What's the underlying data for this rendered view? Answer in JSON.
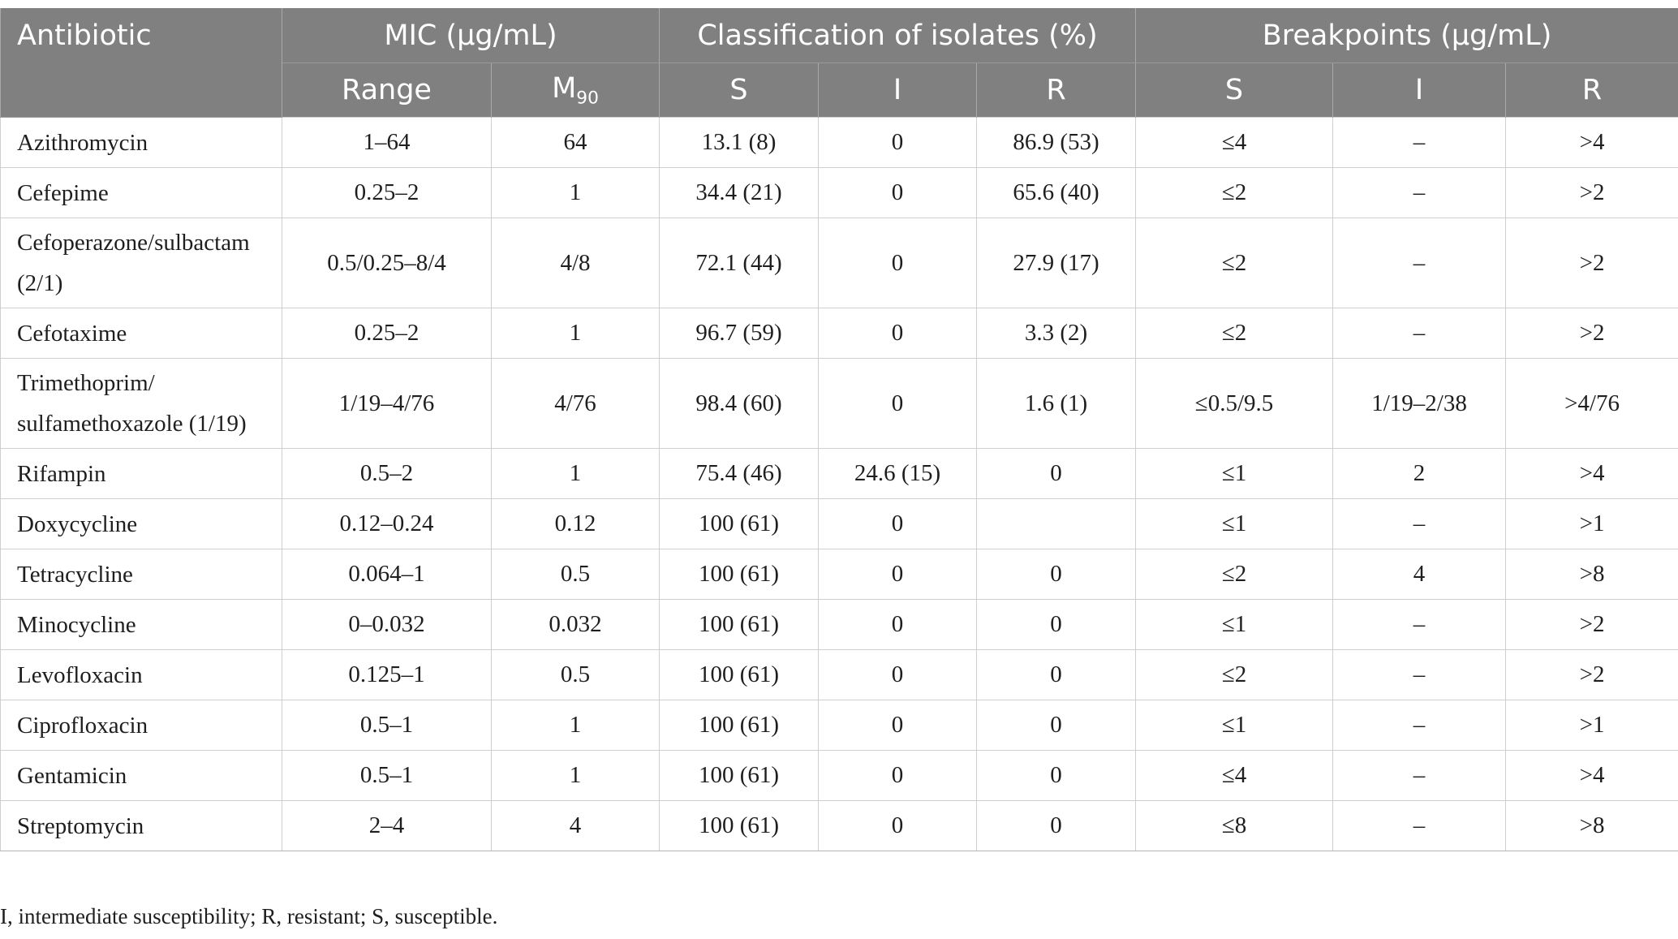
{
  "header": {
    "antibiotic": "Antibiotic",
    "mic": "MIC (μg/mL)",
    "classification": "Classification of isolates (%)",
    "breakpoints": "Breakpoints (μg/mL)",
    "range": "Range",
    "m90_base": "M",
    "m90_sub": "90",
    "s": "S",
    "i": "I",
    "r": "R"
  },
  "rows": [
    {
      "name": "Azithromycin",
      "range": "1–64",
      "m90": "64",
      "s": "13.1 (8)",
      "i": "0",
      "r": "86.9 (53)",
      "bp_s": "≤4",
      "bp_i": "–",
      "bp_r": ">4"
    },
    {
      "name": "Cefepime",
      "range": "0.25–2",
      "m90": "1",
      "s": "34.4 (21)",
      "i": "0",
      "r": "65.6 (40)",
      "bp_s": "≤2",
      "bp_i": "–",
      "bp_r": ">2"
    },
    {
      "name": "Cefoperazone/sulbactam (2/1)",
      "range": "0.5/0.25–8/4",
      "m90": "4/8",
      "s": "72.1 (44)",
      "i": "0",
      "r": "27.9 (17)",
      "bp_s": "≤2",
      "bp_i": "–",
      "bp_r": ">2"
    },
    {
      "name": "Cefotaxime",
      "range": "0.25–2",
      "m90": "1",
      "s": "96.7 (59)",
      "i": "0",
      "r": "3.3 (2)",
      "bp_s": "≤2",
      "bp_i": "–",
      "bp_r": ">2"
    },
    {
      "name": "Trimethoprim/ sulfamethoxazole (1/19)",
      "range": "1/19–4/76",
      "m90": "4/76",
      "s": "98.4 (60)",
      "i": "0",
      "r": "1.6 (1)",
      "bp_s": "≤0.5/9.5",
      "bp_i": "1/19–2/38",
      "bp_r": ">4/76"
    },
    {
      "name": "Rifampin",
      "range": "0.5–2",
      "m90": "1",
      "s": "75.4 (46)",
      "i": "24.6 (15)",
      "r": "0",
      "bp_s": "≤1",
      "bp_i": "2",
      "bp_r": ">4"
    },
    {
      "name": "Doxycycline",
      "range": "0.12–0.24",
      "m90": "0.12",
      "s": "100 (61)",
      "i": "0",
      "r": "",
      "bp_s": "≤1",
      "bp_i": "–",
      "bp_r": ">1"
    },
    {
      "name": "Tetracycline",
      "range": "0.064–1",
      "m90": "0.5",
      "s": "100 (61)",
      "i": "0",
      "r": "0",
      "bp_s": "≤2",
      "bp_i": "4",
      "bp_r": ">8"
    },
    {
      "name": "Minocycline",
      "range": "0–0.032",
      "m90": "0.032",
      "s": "100 (61)",
      "i": "0",
      "r": "0",
      "bp_s": "≤1",
      "bp_i": "–",
      "bp_r": ">2"
    },
    {
      "name": "Levofloxacin",
      "range": "0.125–1",
      "m90": "0.5",
      "s": "100 (61)",
      "i": "0",
      "r": "0",
      "bp_s": "≤2",
      "bp_i": "–",
      "bp_r": ">2"
    },
    {
      "name": "Ciprofloxacin",
      "range": "0.5–1",
      "m90": "1",
      "s": "100 (61)",
      "i": "0",
      "r": "0",
      "bp_s": "≤1",
      "bp_i": "–",
      "bp_r": ">1"
    },
    {
      "name": "Gentamicin",
      "range": "0.5–1",
      "m90": "1",
      "s": "100 (61)",
      "i": "0",
      "r": "0",
      "bp_s": "≤4",
      "bp_i": "–",
      "bp_r": ">4"
    },
    {
      "name": "Streptomycin",
      "range": "2–4",
      "m90": "4",
      "s": "100 (61)",
      "i": "0",
      "r": "0",
      "bp_s": "≤8",
      "bp_i": "–",
      "bp_r": ">8"
    }
  ],
  "footnote": "I, intermediate susceptibility; R, resistant; S, susceptible."
}
